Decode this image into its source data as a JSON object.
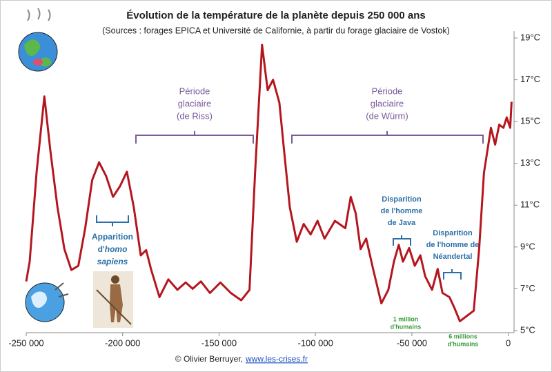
{
  "chart_data": {
    "type": "line",
    "title": "Évolution de la température de la planète depuis 250 000 ans",
    "subtitle": "(Sources : forages EPICA et Université de Californie, à partir du forage glaciaire de Vostok)",
    "x": [
      -250000,
      -248200,
      -244600,
      -240600,
      -237400,
      -233800,
      -230200,
      -226600,
      -223000,
      -219400,
      -215800,
      -212200,
      -208600,
      -205000,
      -201400,
      -197800,
      -194200,
      -190600,
      -187800,
      -185300,
      -180900,
      -176300,
      -171600,
      -167300,
      -163700,
      -159400,
      -154700,
      -149300,
      -143900,
      -138500,
      -134200,
      -131300,
      -127700,
      -124800,
      -122000,
      -118700,
      -116200,
      -113300,
      -109700,
      -106100,
      -102500,
      -98900,
      -95300,
      -89900,
      -84500,
      -81700,
      -79100,
      -76600,
      -73700,
      -70100,
      -65800,
      -62200,
      -59300,
      -56800,
      -54600,
      -51400,
      -48500,
      -45600,
      -43100,
      -39500,
      -36600,
      -34100,
      -30500,
      -28000,
      -25100,
      -21500,
      -17900,
      -15100,
      -12600,
      -9000,
      -6800,
      -4700,
      -2500,
      -800,
      1000,
      1700
    ],
    "values": [
      7.35,
      8.3,
      12.6,
      16.2,
      13.55,
      10.9,
      8.9,
      7.9,
      8.1,
      9.9,
      12.2,
      13.05,
      12.4,
      11.4,
      11.9,
      12.6,
      10.9,
      8.6,
      8.85,
      7.95,
      6.6,
      7.45,
      6.95,
      7.3,
      7.0,
      7.35,
      6.8,
      7.3,
      6.8,
      6.45,
      6.95,
      12.55,
      18.67,
      16.5,
      17.0,
      15.9,
      13.55,
      10.9,
      9.25,
      10.1,
      9.6,
      10.25,
      9.4,
      10.25,
      9.9,
      11.4,
      10.6,
      8.9,
      9.4,
      7.95,
      6.3,
      6.95,
      8.3,
      9.1,
      8.3,
      8.95,
      8.1,
      8.6,
      7.6,
      6.95,
      7.95,
      6.8,
      6.6,
      6.1,
      5.45,
      5.7,
      5.95,
      8.9,
      12.55,
      14.7,
      13.9,
      14.85,
      14.7,
      15.2,
      14.7,
      15.95
    ],
    "color": "#b5161e",
    "xlim": [
      -250000,
      3000
    ],
    "ylim": [
      5,
      19
    ],
    "xticks": [
      {
        "value": -250000,
        "label": "-250 000"
      },
      {
        "value": -200000,
        "label": "-200 000"
      },
      {
        "value": -150000,
        "label": "-150 000"
      },
      {
        "value": -100000,
        "label": "-100 000"
      },
      {
        "value": -50000,
        "label": "-50 000"
      },
      0
    ],
    "yticks": [
      {
        "value": 5,
        "label": "5°C"
      },
      {
        "value": 7,
        "label": "7°C"
      },
      {
        "value": 9,
        "label": "9°C"
      },
      {
        "value": 11,
        "label": "11°C"
      },
      {
        "value": 13,
        "label": "13°C"
      },
      {
        "value": 15,
        "label": "15°C"
      },
      {
        "value": 17,
        "label": "17°C"
      },
      {
        "value": 19,
        "label": "19°C"
      }
    ],
    "grid": false,
    "annotations": [
      {
        "lines": [
          "Période",
          "glaciaire",
          "(de Riss)"
        ]
      },
      {
        "lines": [
          "Période",
          "glaciaire",
          "(de Würm)"
        ]
      },
      {
        "lines": [
          "Apparition",
          "d'",
          "homo",
          "sapiens"
        ]
      },
      {
        "lines": [
          "Disparition",
          "de l'homme",
          "de Java"
        ]
      },
      {
        "lines": [
          "Disparition",
          "de l'homme de",
          "Néandertal"
        ]
      },
      {
        "lines": [
          "1 million",
          "d'humains"
        ]
      },
      {
        "lines": [
          "6 millions",
          "d'humains"
        ]
      }
    ],
    "footer": {
      "credit": "© Olivier Berruyer,",
      "link": "www.les-crises.fr"
    }
  }
}
